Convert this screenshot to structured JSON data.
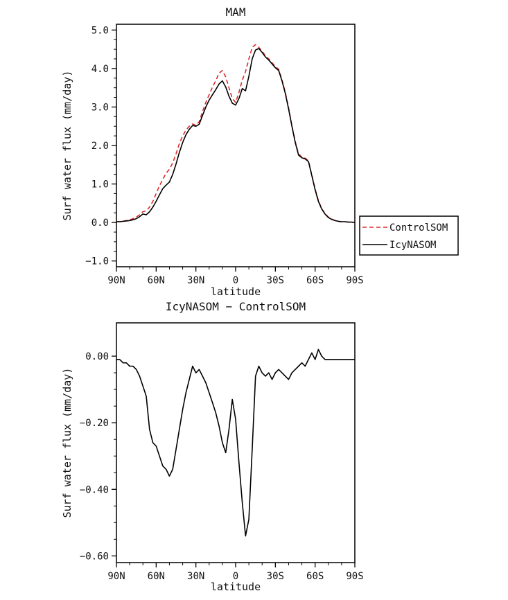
{
  "page": {
    "background": "#ffffff"
  },
  "chart_data": [
    {
      "type": "line",
      "title": "MAM",
      "xlabel": "latitude",
      "ylabel": "Surf water flux (mm/day)",
      "xlim": [
        90,
        -90
      ],
      "ylim": [
        -1.15,
        5.15
      ],
      "xticks": {
        "values": [
          90,
          60,
          30,
          0,
          -30,
          -60,
          -90
        ],
        "labels": [
          "90N",
          "60N",
          "30N",
          "0",
          "30S",
          "60S",
          "90S"
        ],
        "minor_step": 10
      },
      "yticks": {
        "values": [
          -1,
          0,
          1,
          2,
          3,
          4,
          5
        ],
        "labels": [
          "−1.0",
          "0.0",
          "1.0",
          "2.0",
          "3.0",
          "4.0",
          "5.0"
        ],
        "minor_step": 0.25
      },
      "x": [
        90,
        87.5,
        85,
        82.5,
        80,
        77.5,
        75,
        72.5,
        70,
        67.5,
        65,
        62.5,
        60,
        57.5,
        55,
        52.5,
        50,
        47.5,
        45,
        42.5,
        40,
        37.5,
        35,
        32.5,
        30,
        27.5,
        25,
        22.5,
        20,
        17.5,
        15,
        12.5,
        10,
        7.5,
        5,
        2.5,
        0,
        -2.5,
        -5,
        -7.5,
        -10,
        -12.5,
        -15,
        -17.5,
        -20,
        -22.5,
        -25,
        -27.5,
        -30,
        -32.5,
        -35,
        -37.5,
        -40,
        -42.5,
        -45,
        -47.5,
        -50,
        -52.5,
        -55,
        -57.5,
        -60,
        -62.5,
        -65,
        -67.5,
        -70,
        -72.5,
        -75,
        -77.5,
        -80,
        -82.5,
        -85,
        -87.5,
        -90
      ],
      "series": [
        {
          "name": "ControlSOM",
          "color": "#dd2a2a",
          "dash": "6 4",
          "values": [
            0.02,
            0.02,
            0.03,
            0.05,
            0.07,
            0.1,
            0.14,
            0.2,
            0.28,
            0.3,
            0.4,
            0.55,
            0.75,
            0.95,
            1.12,
            1.28,
            1.38,
            1.55,
            1.78,
            2.05,
            2.25,
            2.4,
            2.5,
            2.56,
            2.52,
            2.62,
            2.88,
            3.12,
            3.32,
            3.52,
            3.68,
            3.88,
            3.95,
            3.78,
            3.5,
            3.22,
            3.12,
            3.38,
            3.7,
            3.92,
            4.25,
            4.55,
            4.62,
            4.55,
            4.45,
            4.33,
            4.25,
            4.15,
            4.05,
            3.98,
            3.7,
            3.38,
            2.98,
            2.52,
            2.1,
            1.78,
            1.7,
            1.67,
            1.6,
            1.24,
            0.87,
            0.57,
            0.36,
            0.23,
            0.14,
            0.09,
            0.05,
            0.03,
            0.02,
            0.02,
            0.01,
            0.01,
            0.0
          ]
        },
        {
          "name": "IcyNASOM",
          "color": "#000000",
          "dash": "",
          "values": [
            0.02,
            0.02,
            0.03,
            0.04,
            0.05,
            0.07,
            0.1,
            0.15,
            0.22,
            0.2,
            0.28,
            0.4,
            0.55,
            0.72,
            0.88,
            0.97,
            1.05,
            1.25,
            1.52,
            1.82,
            2.08,
            2.28,
            2.42,
            2.52,
            2.5,
            2.55,
            2.78,
            3.0,
            3.18,
            3.32,
            3.45,
            3.6,
            3.68,
            3.52,
            3.28,
            3.1,
            3.05,
            3.22,
            3.48,
            3.42,
            3.8,
            4.25,
            4.48,
            4.52,
            4.42,
            4.3,
            4.22,
            4.12,
            4.02,
            3.95,
            3.68,
            3.35,
            2.95,
            2.5,
            2.08,
            1.75,
            1.68,
            1.65,
            1.58,
            1.22,
            0.85,
            0.55,
            0.35,
            0.22,
            0.13,
            0.08,
            0.05,
            0.03,
            0.02,
            0.02,
            0.01,
            0.01,
            0.0
          ]
        }
      ],
      "legend": {
        "position": "outside-right",
        "entries": [
          "ControlSOM",
          "IcyNASOM"
        ]
      }
    },
    {
      "type": "line",
      "title": "IcyNASOM − ControlSOM",
      "xlabel": "latitude",
      "ylabel": "Surf water flux (mm/day)",
      "xlim": [
        90,
        -90
      ],
      "ylim": [
        -0.62,
        0.1
      ],
      "xticks": {
        "values": [
          90,
          60,
          30,
          0,
          -30,
          -60,
          -90
        ],
        "labels": [
          "90N",
          "60N",
          "30N",
          "0",
          "30S",
          "60S",
          "90S"
        ],
        "minor_step": 10
      },
      "yticks": {
        "values": [
          0,
          -0.2,
          -0.4,
          -0.6
        ],
        "labels": [
          "0.00",
          "−0.20",
          "−0.40",
          "−0.60"
        ],
        "minor_step": 0.05
      },
      "x": [
        90,
        87.5,
        85,
        82.5,
        80,
        77.5,
        75,
        72.5,
        70,
        67.5,
        65,
        62.5,
        60,
        57.5,
        55,
        52.5,
        50,
        47.5,
        45,
        42.5,
        40,
        37.5,
        35,
        32.5,
        30,
        27.5,
        25,
        22.5,
        20,
        17.5,
        15,
        12.5,
        10,
        7.5,
        5,
        2.5,
        0,
        -2.5,
        -5,
        -7.5,
        -10,
        -12.5,
        -15,
        -17.5,
        -20,
        -22.5,
        -25,
        -27.5,
        -30,
        -32.5,
        -35,
        -37.5,
        -40,
        -42.5,
        -45,
        -47.5,
        -50,
        -52.5,
        -55,
        -57.5,
        -60,
        -62.5,
        -65,
        -67.5,
        -70,
        -72.5,
        -75,
        -77.5,
        -80,
        -82.5,
        -85,
        -87.5,
        -90
      ],
      "series": [
        {
          "name": "IcyNASOM − ControlSOM",
          "color": "#000000",
          "dash": "",
          "values": [
            -0.01,
            -0.01,
            -0.02,
            -0.02,
            -0.03,
            -0.03,
            -0.04,
            -0.06,
            -0.09,
            -0.12,
            -0.22,
            -0.26,
            -0.27,
            -0.3,
            -0.33,
            -0.34,
            -0.36,
            -0.34,
            -0.28,
            -0.22,
            -0.16,
            -0.11,
            -0.07,
            -0.03,
            -0.05,
            -0.04,
            -0.06,
            -0.08,
            -0.11,
            -0.14,
            -0.17,
            -0.21,
            -0.26,
            -0.29,
            -0.22,
            -0.13,
            -0.19,
            -0.32,
            -0.44,
            -0.54,
            -0.49,
            -0.28,
            -0.06,
            -0.03,
            -0.05,
            -0.06,
            -0.05,
            -0.07,
            -0.05,
            -0.04,
            -0.05,
            -0.06,
            -0.07,
            -0.05,
            -0.04,
            -0.03,
            -0.02,
            -0.03,
            -0.01,
            0.01,
            -0.01,
            0.02,
            0.0,
            -0.01,
            -0.01,
            -0.01,
            -0.01,
            -0.01,
            -0.01,
            -0.01,
            -0.01,
            -0.01,
            -0.01
          ]
        }
      ]
    }
  ]
}
